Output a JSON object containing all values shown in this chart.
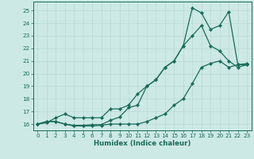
{
  "xlabel": "Humidex (Indice chaleur)",
  "bg_color": "#cce9e5",
  "line_color": "#1a6b5a",
  "grid_color": "#b8d8d4",
  "xlim": [
    -0.5,
    23.5
  ],
  "ylim": [
    15.5,
    25.7
  ],
  "yticks": [
    16,
    17,
    18,
    19,
    20,
    21,
    22,
    23,
    24,
    25
  ],
  "xticks": [
    0,
    1,
    2,
    3,
    4,
    5,
    6,
    7,
    8,
    9,
    10,
    11,
    12,
    13,
    14,
    15,
    16,
    17,
    18,
    19,
    20,
    21,
    22,
    23
  ],
  "line1_x": [
    0,
    1,
    2,
    3,
    4,
    5,
    6,
    7,
    8,
    9,
    10,
    11,
    12,
    13,
    14,
    15,
    16,
    17,
    18,
    19,
    20,
    21,
    22,
    23
  ],
  "line1_y": [
    16.0,
    16.2,
    16.2,
    16.0,
    15.85,
    15.85,
    15.85,
    15.9,
    16.0,
    16.0,
    16.0,
    16.0,
    16.2,
    16.5,
    16.8,
    17.5,
    18.0,
    19.2,
    20.5,
    20.8,
    21.0,
    20.5,
    20.7,
    20.7
  ],
  "line2_x": [
    0,
    1,
    2,
    3,
    4,
    5,
    6,
    7,
    8,
    9,
    10,
    11,
    12,
    13,
    14,
    15,
    16,
    17,
    18,
    19,
    20,
    21,
    22,
    23
  ],
  "line2_y": [
    16.0,
    16.2,
    16.2,
    16.0,
    15.9,
    15.9,
    15.95,
    15.95,
    16.3,
    16.55,
    17.3,
    17.5,
    19.0,
    19.5,
    20.5,
    21.0,
    22.2,
    23.0,
    23.8,
    22.2,
    21.8,
    21.0,
    20.5,
    20.7
  ],
  "line3_x": [
    0,
    1,
    2,
    3,
    4,
    5,
    6,
    7,
    8,
    9,
    10,
    11,
    12,
    13,
    14,
    15,
    16,
    17,
    18,
    19,
    20,
    21,
    22,
    23
  ],
  "line3_y": [
    16.0,
    16.1,
    16.5,
    16.8,
    16.5,
    16.5,
    16.5,
    16.5,
    17.2,
    17.2,
    17.5,
    18.4,
    19.0,
    19.5,
    20.5,
    21.0,
    22.2,
    25.2,
    24.8,
    23.5,
    23.8,
    24.9,
    20.7,
    20.8
  ]
}
